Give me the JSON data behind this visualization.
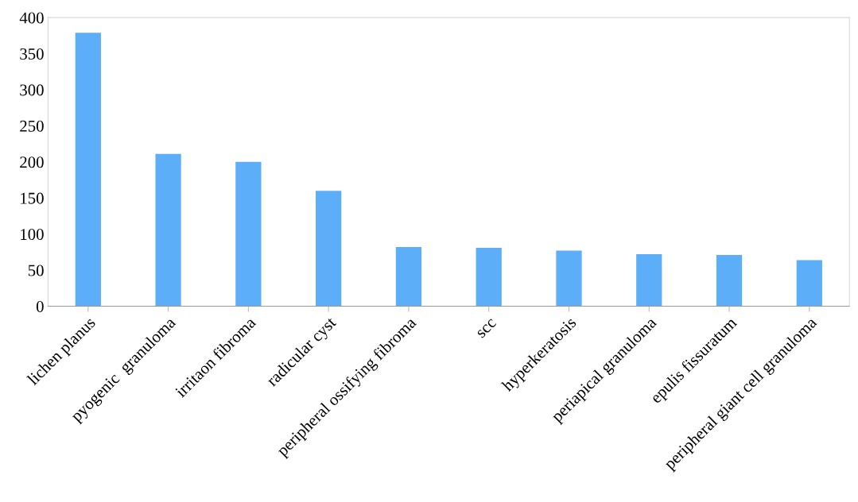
{
  "chart_data": {
    "type": "bar",
    "categories": [
      "lichen planus",
      "pyogenic  granuloma",
      "irritaon fibroma",
      "radicular cyst",
      "peripheral ossifying fibroma",
      "scc",
      "hyperkeratosis",
      "periapical granuloma",
      "epulis fissuratum",
      "peripheral giant cell granuloma"
    ],
    "values": [
      379,
      211,
      200,
      160,
      82,
      81,
      77,
      72,
      71,
      64
    ],
    "color": "#5baef7",
    "ylim": [
      0,
      400
    ],
    "yticks": [
      0,
      50,
      100,
      150,
      200,
      250,
      300,
      350,
      400
    ],
    "grid": false
  }
}
